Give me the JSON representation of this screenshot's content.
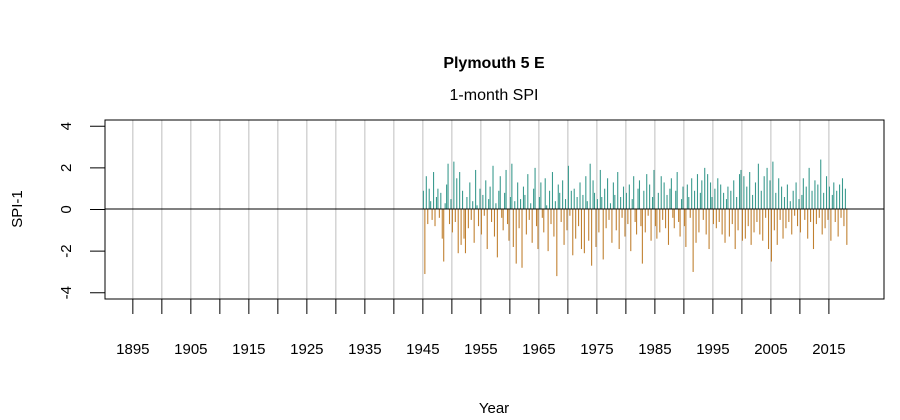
{
  "chart_data": {
    "type": "bar",
    "title": "Plymouth 5 E",
    "subtitle": "1-month SPI",
    "xlabel": "Year",
    "ylabel": "SPI-1",
    "xlim": [
      1890.2,
      2024.5
    ],
    "ylim": [
      -4.3,
      4.3
    ],
    "x_ticks": [
      1895,
      1900,
      1905,
      1910,
      1915,
      1920,
      1925,
      1930,
      1935,
      1940,
      1945,
      1950,
      1955,
      1960,
      1965,
      1970,
      1975,
      1980,
      1985,
      1990,
      1995,
      2000,
      2005,
      2010,
      2015
    ],
    "x_tick_labels": [
      "1895",
      "1905",
      "1915",
      "1925",
      "1935",
      "1945",
      "1955",
      "1965",
      "1975",
      "1985",
      "1995",
      "2005",
      "2015"
    ],
    "y_ticks": [
      4,
      2,
      0,
      -2,
      -4
    ],
    "y_tick_labels": [
      "4",
      "2",
      "0",
      "-2",
      "-4"
    ],
    "grid": "vertical lines at x ticks",
    "colors": {
      "positive": "#3a9a8e",
      "negative": "#c08030",
      "grid": "#bebebe"
    },
    "series": [
      {
        "start": 1945.0,
        "frequency": "quarterly",
        "values": [
          0.9,
          -3.1,
          1.6,
          -0.7,
          1.0,
          0.4,
          -0.5,
          1.8,
          -0.8,
          0.6,
          1.0,
          -0.4,
          0.8,
          -1.4,
          -2.5,
          0.3,
          1.2,
          2.2,
          -0.7,
          0.5,
          -1.1,
          2.3,
          -0.6,
          1.5,
          -2.1,
          1.8,
          -1.7,
          0.9,
          -1.4,
          -2.1,
          0.6,
          -0.9,
          1.3,
          -0.5,
          0.4,
          -1.6,
          1.9,
          0.2,
          -0.8,
          1.0,
          -1.2,
          0.7,
          -0.3,
          1.4,
          -1.9,
          0.5,
          1.1,
          -0.6,
          2.1,
          -1.3,
          0.3,
          -2.3,
          0.9,
          1.6,
          -0.4,
          -1.0,
          0.8,
          1.9,
          -0.7,
          -1.5,
          0.6,
          2.2,
          -1.8,
          0.4,
          -2.6,
          1.3,
          -0.9,
          0.5,
          -2.8,
          1.1,
          0.7,
          -1.2,
          1.7,
          -0.5,
          0.3,
          -1.6,
          1.0,
          2.0,
          -0.8,
          -1.9,
          0.6,
          1.3,
          -0.4,
          -1.1,
          1.5,
          0.2,
          -2.0,
          0.9,
          -0.7,
          1.8,
          -1.3,
          0.4,
          -3.2,
          1.2,
          0.8,
          -0.6,
          1.4,
          -1.7,
          0.5,
          -1.0,
          2.1,
          -0.3,
          0.9,
          -2.2,
          1.0,
          -1.4,
          0.6,
          -0.8,
          1.3,
          -1.9,
          0.7,
          -2.1,
          1.6,
          0.4,
          -1.5,
          2.2,
          -2.7,
          1.4,
          0.8,
          -1.8,
          0.5,
          -1.1,
          1.9,
          0.6,
          -2.4,
          1.0,
          -0.9,
          1.5,
          -0.5,
          0.3,
          -1.6,
          1.3,
          0.7,
          -1.0,
          1.8,
          -1.9,
          0.6,
          -0.4,
          1.1,
          -1.3,
          0.8,
          -0.7,
          1.2,
          -2.0,
          0.5,
          1.6,
          -0.6,
          -1.2,
          1.0,
          1.4,
          -0.8,
          -2.6,
          0.9,
          -1.1,
          1.7,
          -0.3,
          1.2,
          -1.5,
          0.6,
          1.9,
          -0.8,
          -1.4,
          0.8,
          -1.1,
          1.6,
          -0.5,
          1.3,
          -0.9,
          0.7,
          -1.7,
          1.0,
          1.5,
          -0.4,
          -0.9,
          0.9,
          1.8,
          -0.6,
          -1.3,
          0.5,
          1.1,
          -0.8,
          -1.8,
          1.2,
          0.6,
          -0.4,
          1.5,
          -3.0,
          0.9,
          -1.6,
          1.7,
          -1.1,
          0.8,
          1.4,
          -0.5,
          2.0,
          -1.2,
          1.7,
          -1.9,
          1.3,
          0.6,
          -0.7,
          1.0,
          -0.9,
          1.5,
          -0.6,
          1.2,
          -1.2,
          0.8,
          -1.6,
          0.5,
          1.1,
          -1.3,
          0.9,
          -0.7,
          1.4,
          -1.9,
          0.6,
          -1.0,
          1.7,
          1.9,
          -1.5,
          1.6,
          -1.4,
          1.1,
          -0.8,
          1.8,
          -1.7,
          0.7,
          -1.1,
          1.3,
          -0.6,
          2.2,
          -1.2,
          0.9,
          -1.5,
          1.6,
          -0.4,
          2.0,
          -1.9,
          1.4,
          -2.5,
          2.3,
          -1.0,
          0.8,
          -1.7,
          1.5,
          -0.5,
          1.1,
          -1.4,
          0.6,
          -0.9,
          1.2,
          -0.6,
          0.4,
          -1.2,
          0.9,
          -0.3,
          1.3,
          -0.8,
          0.5,
          -1.1,
          0.7,
          1.5,
          -0.5,
          1.1,
          -1.4,
          2.0,
          -0.6,
          0.9,
          -1.9,
          1.4,
          -0.7,
          1.2,
          -0.4,
          2.4,
          -1.2,
          0.8,
          -0.9,
          1.6,
          -0.5,
          1.1,
          -1.5,
          0.7,
          1.3,
          -0.6,
          0.9,
          -1.3,
          1.2,
          -0.4,
          1.5,
          -0.8,
          1.0,
          -1.7
        ]
      }
    ]
  }
}
